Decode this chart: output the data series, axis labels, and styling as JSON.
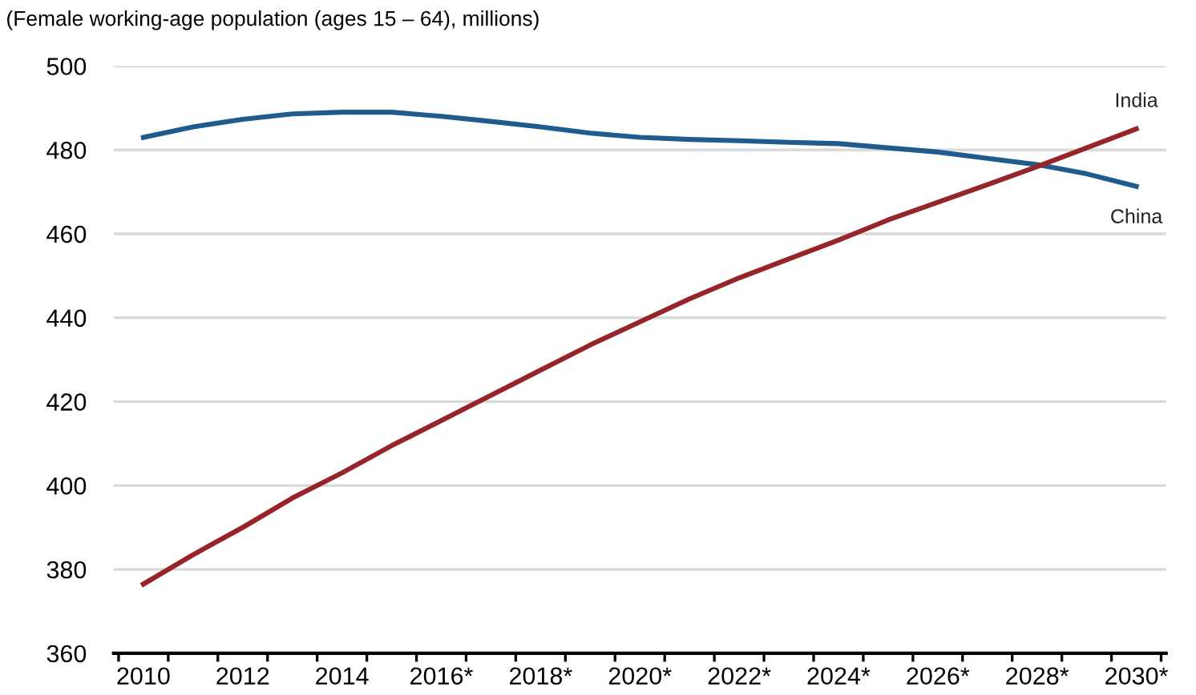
{
  "chart_data": {
    "type": "line",
    "ylabel": "(Female working-age population (ages 15 – 64), millions)",
    "categories": [
      "2010",
      null,
      "2012",
      null,
      "2014",
      null,
      "2016*",
      null,
      "2018*",
      null,
      "2020*",
      null,
      "2022*",
      null,
      "2024*",
      null,
      "2026*",
      null,
      "2028*",
      null,
      "2030*"
    ],
    "series": [
      {
        "name": "China",
        "color": "#1f5b8e",
        "values": [
          483,
          485.5,
          487.3,
          488.6,
          489,
          489,
          488,
          486.8,
          485.5,
          484,
          483,
          482.5,
          482.2,
          481.8,
          481.5,
          480.5,
          479.5,
          478,
          476.5,
          474.3,
          471.3
        ]
      },
      {
        "name": "India",
        "color": "#962428",
        "values": [
          376.5,
          383.5,
          390,
          397,
          403,
          409.5,
          415.5,
          421.5,
          427.5,
          433.5,
          439,
          444.5,
          449.5,
          454,
          458.5,
          463.3,
          467.5,
          471.7,
          476,
          480.5,
          485
        ]
      }
    ],
    "ylim": [
      360,
      500
    ],
    "yticks": [
      360,
      380,
      400,
      420,
      440,
      460,
      480,
      500
    ],
    "grid": "y",
    "legend": false,
    "marker": "none",
    "line_style": "solid"
  }
}
